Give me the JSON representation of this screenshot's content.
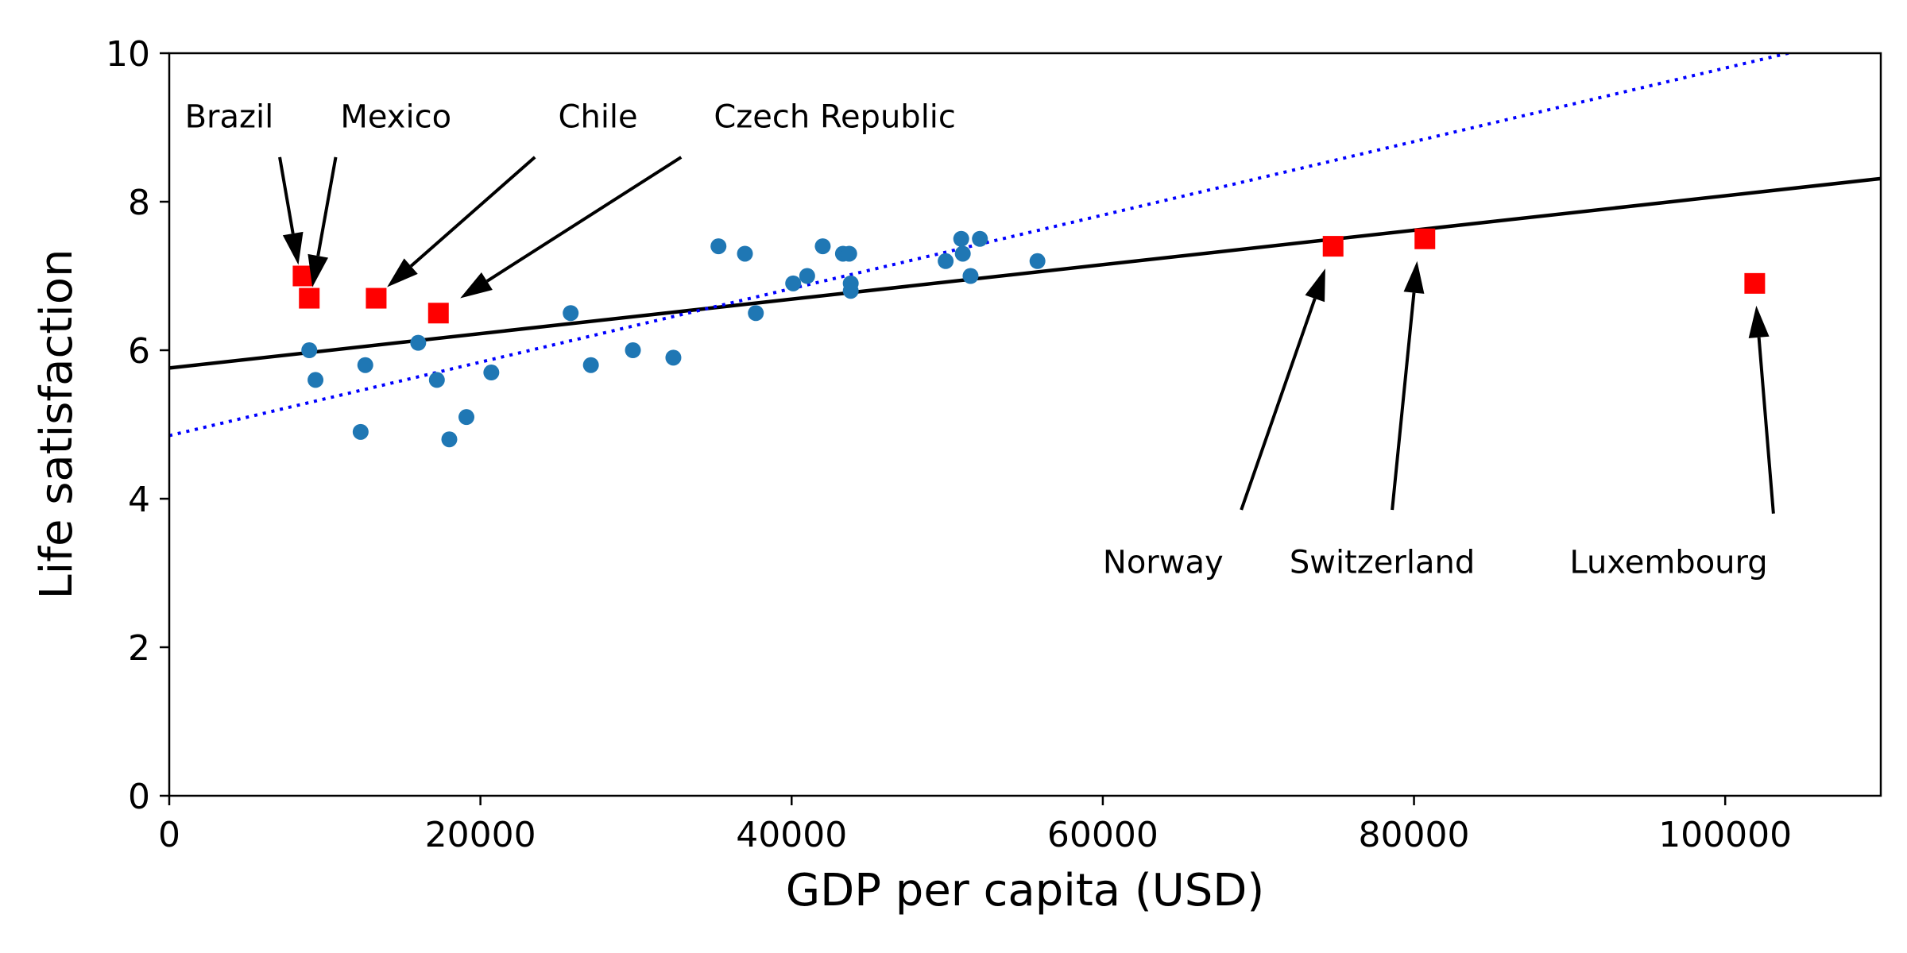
{
  "chart_data": {
    "type": "scatter",
    "xlabel": "GDP per capita (USD)",
    "ylabel": "Life satisfaction",
    "xlim": [
      0,
      110000
    ],
    "ylim": [
      0,
      10
    ],
    "xticks": [
      0,
      20000,
      40000,
      60000,
      80000,
      100000
    ],
    "yticks": [
      0,
      2,
      4,
      6,
      8,
      10
    ],
    "grid": false,
    "colors": {
      "points": "#1f77b4",
      "highlight": "#ff0000",
      "full_fit": "#000000",
      "partial_fit": "#0000ff"
    },
    "series": [
      {
        "marker": "circle",
        "color": "#1f77b4",
        "points": [
          [
            9000,
            6.0
          ],
          [
            9400,
            5.6
          ],
          [
            12300,
            4.9
          ],
          [
            12600,
            5.8
          ],
          [
            16000,
            6.1
          ],
          [
            17200,
            5.6
          ],
          [
            18000,
            4.8
          ],
          [
            19100,
            5.1
          ],
          [
            20700,
            5.7
          ],
          [
            25800,
            6.5
          ],
          [
            27100,
            5.8
          ],
          [
            29800,
            6.0
          ],
          [
            32400,
            5.9
          ],
          [
            35300,
            7.4
          ],
          [
            37000,
            7.3
          ],
          [
            37700,
            6.5
          ],
          [
            40100,
            6.9
          ],
          [
            41000,
            7.0
          ],
          [
            42000,
            7.4
          ],
          [
            43300,
            7.3
          ],
          [
            43700,
            7.3
          ],
          [
            43800,
            6.9
          ],
          [
            43800,
            6.8
          ],
          [
            49900,
            7.2
          ],
          [
            50900,
            7.5
          ],
          [
            51000,
            7.3
          ],
          [
            51500,
            7.0
          ],
          [
            52100,
            7.5
          ],
          [
            55800,
            7.2
          ]
        ]
      },
      {
        "marker": "square",
        "color": "#ff0000",
        "points": [
          [
            8600,
            7.0
          ],
          [
            9000,
            6.7
          ],
          [
            13300,
            6.7
          ],
          [
            17300,
            6.5
          ],
          [
            74800,
            7.4
          ],
          [
            80700,
            7.5
          ],
          [
            101900,
            6.9
          ]
        ]
      }
    ],
    "lines": [
      {
        "style": "solid",
        "color": "#000000",
        "intercept": 5.76,
        "slope": 2.32e-05
      },
      {
        "style": "dotted",
        "color": "#0000ff",
        "intercept": 4.85,
        "slope": 4.95e-05
      }
    ],
    "annotations": [
      {
        "label": "Brazil",
        "text_pos": [
          1000,
          9.0
        ],
        "tail": [
          7100,
          8.6
        ],
        "head": [
          8300,
          7.15
        ]
      },
      {
        "label": "Mexico",
        "text_pos": [
          11000,
          9.0
        ],
        "tail": [
          10700,
          8.6
        ],
        "head": [
          9200,
          6.85
        ]
      },
      {
        "label": "Chile",
        "text_pos": [
          25000,
          9.0
        ],
        "tail": [
          23500,
          8.6
        ],
        "head": [
          14000,
          6.85
        ]
      },
      {
        "label": "Czech Republic",
        "text_pos": [
          35000,
          9.0
        ],
        "tail": [
          32900,
          8.6
        ],
        "head": [
          18700,
          6.7
        ]
      },
      {
        "label": "Norway",
        "text_pos": [
          60000,
          3.0
        ],
        "tail": [
          68900,
          3.85
        ],
        "head": [
          74300,
          7.1
        ]
      },
      {
        "label": "Switzerland",
        "text_pos": [
          72000,
          3.0
        ],
        "tail": [
          78600,
          3.85
        ],
        "head": [
          80200,
          7.2
        ]
      },
      {
        "label": "Luxembourg",
        "text_pos": [
          90000,
          3.0
        ],
        "tail": [
          103100,
          3.8
        ],
        "head": [
          102000,
          6.6
        ]
      }
    ]
  }
}
